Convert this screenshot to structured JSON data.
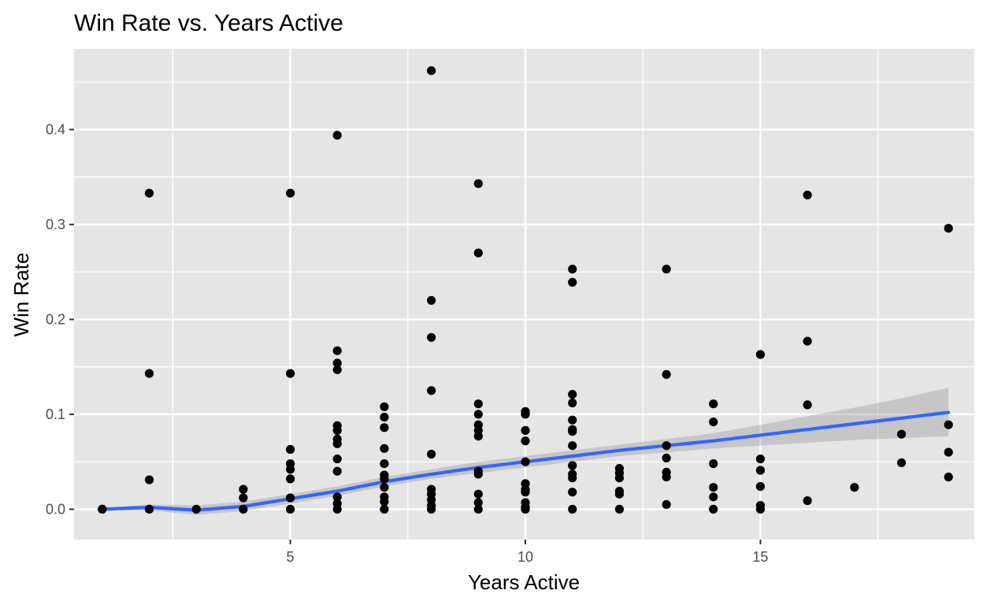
{
  "chart_data": {
    "type": "scatter",
    "title": "Win Rate vs. Years Active",
    "xlabel": "Years Active",
    "ylabel": "Win Rate",
    "xlim": [
      0.4,
      19.55
    ],
    "ylim": [
      -0.032,
      0.485
    ],
    "x_ticks": [
      5,
      10,
      15
    ],
    "x_tick_labels": [
      "5",
      "10",
      "15"
    ],
    "x_minor_ticks": [
      2.5,
      7.5,
      12.5,
      17.5
    ],
    "y_ticks": [
      0.0,
      0.1,
      0.2,
      0.3,
      0.4
    ],
    "y_tick_labels": [
      "0.0",
      "0.1",
      "0.2",
      "0.3",
      "0.4"
    ],
    "y_minor_ticks": [
      0.05,
      0.15,
      0.25,
      0.35,
      0.45
    ],
    "grid": true,
    "legend": "none",
    "colors": {
      "panel": "#e5e5e5",
      "grid": "#ffffff",
      "points": "#000000",
      "smooth_line": "#3366ff",
      "ribbon": "#999999"
    },
    "points": [
      [
        1,
        0.0
      ],
      [
        1,
        0.0
      ],
      [
        2,
        0.333
      ],
      [
        2,
        0.143
      ],
      [
        2,
        0.031
      ],
      [
        2,
        0.0
      ],
      [
        3,
        0.0
      ],
      [
        4,
        0.021
      ],
      [
        4,
        0.012
      ],
      [
        4,
        0.0
      ],
      [
        5,
        0.333
      ],
      [
        5,
        0.143
      ],
      [
        5,
        0.063
      ],
      [
        5,
        0.048
      ],
      [
        5,
        0.042
      ],
      [
        5,
        0.032
      ],
      [
        5,
        0.012
      ],
      [
        5,
        0.0
      ],
      [
        6,
        0.394
      ],
      [
        6,
        0.167
      ],
      [
        6,
        0.154
      ],
      [
        6,
        0.147
      ],
      [
        6,
        0.088
      ],
      [
        6,
        0.083
      ],
      [
        6,
        0.074
      ],
      [
        6,
        0.069
      ],
      [
        6,
        0.053
      ],
      [
        6,
        0.04
      ],
      [
        6,
        0.013
      ],
      [
        6,
        0.006
      ],
      [
        6,
        0.0
      ],
      [
        7,
        0.108
      ],
      [
        7,
        0.097
      ],
      [
        7,
        0.086
      ],
      [
        7,
        0.064
      ],
      [
        7,
        0.048
      ],
      [
        7,
        0.036
      ],
      [
        7,
        0.032
      ],
      [
        7,
        0.023
      ],
      [
        7,
        0.013
      ],
      [
        7,
        0.008
      ],
      [
        7,
        0.0
      ],
      [
        8,
        0.462
      ],
      [
        8,
        0.22
      ],
      [
        8,
        0.181
      ],
      [
        8,
        0.125
      ],
      [
        8,
        0.058
      ],
      [
        8,
        0.021
      ],
      [
        8,
        0.016
      ],
      [
        8,
        0.01
      ],
      [
        8,
        0.004
      ],
      [
        8,
        0.0
      ],
      [
        9,
        0.343
      ],
      [
        9,
        0.27
      ],
      [
        9,
        0.111
      ],
      [
        9,
        0.1
      ],
      [
        9,
        0.089
      ],
      [
        9,
        0.083
      ],
      [
        9,
        0.077
      ],
      [
        9,
        0.04
      ],
      [
        9,
        0.037
      ],
      [
        9,
        0.016
      ],
      [
        9,
        0.007
      ],
      [
        9,
        0.0
      ],
      [
        10,
        0.103
      ],
      [
        10,
        0.1
      ],
      [
        10,
        0.083
      ],
      [
        10,
        0.072
      ],
      [
        10,
        0.05
      ],
      [
        10,
        0.027
      ],
      [
        10,
        0.021
      ],
      [
        10,
        0.018
      ],
      [
        10,
        0.007
      ],
      [
        10,
        0.002
      ],
      [
        10,
        0.0
      ],
      [
        11,
        0.253
      ],
      [
        11,
        0.239
      ],
      [
        11,
        0.121
      ],
      [
        11,
        0.112
      ],
      [
        11,
        0.094
      ],
      [
        11,
        0.084
      ],
      [
        11,
        0.082
      ],
      [
        11,
        0.067
      ],
      [
        11,
        0.046
      ],
      [
        11,
        0.037
      ],
      [
        11,
        0.033
      ],
      [
        11,
        0.018
      ],
      [
        11,
        0.0
      ],
      [
        12,
        0.043
      ],
      [
        12,
        0.038
      ],
      [
        12,
        0.033
      ],
      [
        12,
        0.019
      ],
      [
        12,
        0.016
      ],
      [
        12,
        0.0
      ],
      [
        13,
        0.253
      ],
      [
        13,
        0.142
      ],
      [
        13,
        0.067
      ],
      [
        13,
        0.054
      ],
      [
        13,
        0.039
      ],
      [
        13,
        0.034
      ],
      [
        13,
        0.005
      ],
      [
        14,
        0.111
      ],
      [
        14,
        0.092
      ],
      [
        14,
        0.048
      ],
      [
        14,
        0.023
      ],
      [
        14,
        0.013
      ],
      [
        14,
        0.0
      ],
      [
        15,
        0.163
      ],
      [
        15,
        0.053
      ],
      [
        15,
        0.041
      ],
      [
        15,
        0.024
      ],
      [
        15,
        0.004
      ],
      [
        15,
        0.0
      ],
      [
        16,
        0.331
      ],
      [
        16,
        0.177
      ],
      [
        16,
        0.11
      ],
      [
        16,
        0.009
      ],
      [
        17,
        0.023
      ],
      [
        18,
        0.079
      ],
      [
        18,
        0.049
      ],
      [
        19,
        0.296
      ],
      [
        19,
        0.089
      ],
      [
        19,
        0.06
      ],
      [
        19,
        0.034
      ]
    ],
    "smooth_fit": {
      "x": [
        1,
        2,
        3,
        4,
        5,
        6,
        7,
        8,
        9,
        10,
        11,
        12,
        13,
        14,
        15,
        16,
        17,
        18,
        19
      ],
      "y": [
        0.0,
        0.002,
        -0.001,
        0.003,
        0.011,
        0.019,
        0.029,
        0.037,
        0.044,
        0.05,
        0.056,
        0.062,
        0.067,
        0.072,
        0.078,
        0.084,
        0.09,
        0.096,
        0.102
      ],
      "lower": [
        -0.001,
        -0.001,
        -0.006,
        -0.002,
        0.006,
        0.014,
        0.024,
        0.032,
        0.038,
        0.044,
        0.05,
        0.056,
        0.06,
        0.064,
        0.067,
        0.07,
        0.073,
        0.075,
        0.077
      ],
      "upper": [
        0.001,
        0.005,
        0.004,
        0.008,
        0.016,
        0.024,
        0.034,
        0.042,
        0.05,
        0.056,
        0.062,
        0.068,
        0.074,
        0.08,
        0.089,
        0.098,
        0.107,
        0.117,
        0.128
      ]
    }
  }
}
